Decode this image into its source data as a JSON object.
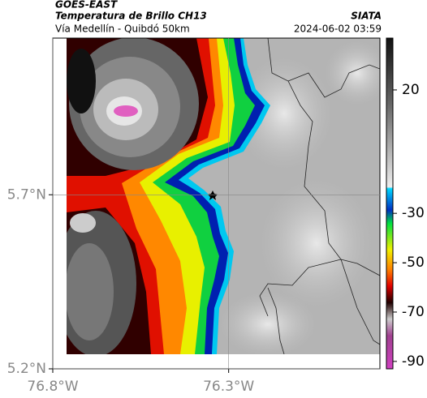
{
  "header": {
    "source": "GOES-EAST",
    "product": "Temperatura de Brillo CH13",
    "region": "Vía Medellín - Quibdó 50km",
    "agency": "SIATA",
    "datetime": "2024-06-02 03:59"
  },
  "map": {
    "xlim": [
      -76.8,
      -75.87
    ],
    "ylim": [
      5.2,
      6.15
    ],
    "xticks": [
      {
        "value": -76.8,
        "label": "76.8°W"
      },
      {
        "value": -76.3,
        "label": "76.3°W"
      }
    ],
    "yticks": [
      {
        "value": 5.2,
        "label": "5.2°N"
      },
      {
        "value": 5.7,
        "label": "5.7°N"
      }
    ]
  },
  "colorbar": {
    "lim": [
      -93,
      41
    ],
    "ticks": [
      20,
      -30,
      -50,
      -70,
      -90
    ]
  }
}
